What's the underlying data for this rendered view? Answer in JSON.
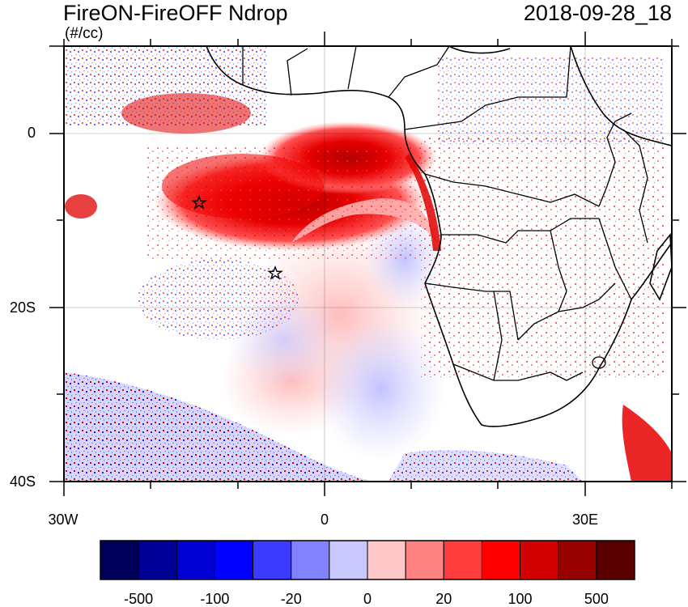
{
  "title": "FireON-FireOFF Ndrop",
  "units": "(#/cc)",
  "date": "2018-09-28_18",
  "map": {
    "lat_labels": [
      "0",
      "20S",
      "40S"
    ],
    "lon_labels": [
      "30W",
      "0",
      "30E"
    ]
  },
  "colorbar": {
    "labels": [
      "-500",
      "-100",
      "-20",
      "0",
      "20",
      "100",
      "500"
    ],
    "colors": [
      "#00005a",
      "#000096",
      "#0000d2",
      "#0000ff",
      "#3c3cff",
      "#8282ff",
      "#c8c8ff",
      "#ffc8c8",
      "#ff8282",
      "#ff3c3c",
      "#ff0000",
      "#d20000",
      "#960000",
      "#5a0000"
    ]
  }
}
